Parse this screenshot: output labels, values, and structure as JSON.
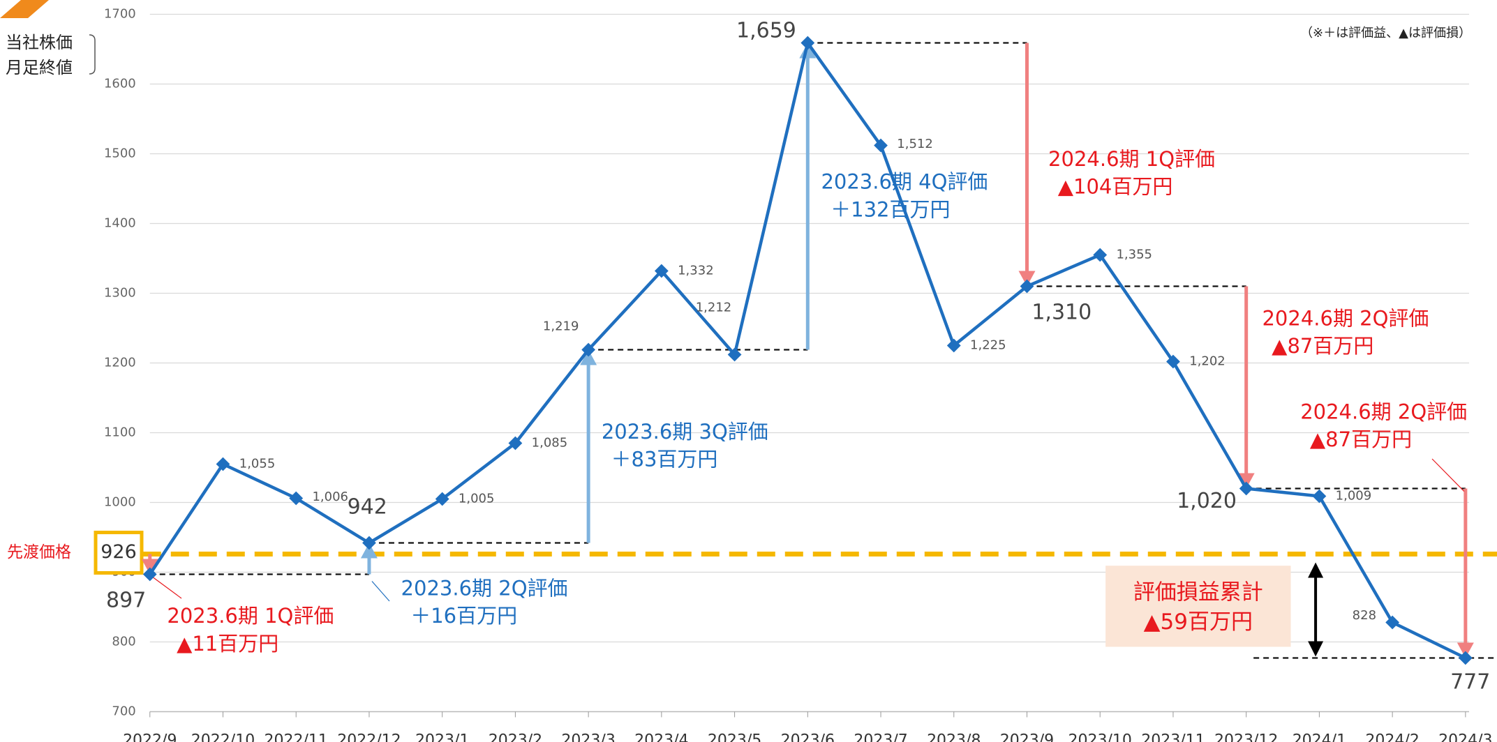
{
  "chart_data": {
    "type": "line",
    "y_axis_label": [
      "当社株価",
      "月足終値"
    ],
    "note": "（※＋は評価益、▲は評価損）",
    "categories": [
      "2022/9",
      "2022/10",
      "2022/11",
      "2022/12",
      "2023/1",
      "2023/2",
      "2023/3",
      "2023/4",
      "2023/5",
      "2023/6",
      "2023/7",
      "2023/8",
      "2023/9",
      "2023/10",
      "2023/11",
      "2023/12",
      "2024/1",
      "2024/2",
      "2024/3"
    ],
    "series": [
      {
        "color": "#1f6fbf",
        "values": [
          897,
          1055,
          1006,
          942,
          1005,
          1085,
          1219,
          1332,
          1212,
          1659,
          1512,
          1225,
          1310,
          1355,
          1202,
          1020,
          1009,
          828,
          777
        ],
        "value_labels": [
          "897",
          "1,055",
          "1,006",
          "942",
          "1,005",
          "1,085",
          "1,219",
          "1,332",
          "1,212",
          "1,659",
          "1,512",
          "1,225",
          "1,310",
          "1,355",
          "1,202",
          "1,020",
          "1,009",
          "828",
          "777"
        ]
      }
    ],
    "ylim": [
      700,
      1700
    ],
    "yticks": [
      700,
      800,
      900,
      1000,
      1100,
      1200,
      1300,
      1400,
      1500,
      1600,
      1700
    ],
    "grid": true,
    "reference_line": {
      "label": "先渡価格",
      "value": 926,
      "color": "#f5b800"
    },
    "annotations": [
      {
        "lines": [
          "2023.6期 1Q評価",
          "▲11百万円"
        ],
        "color": "#e8191e"
      },
      {
        "lines": [
          "2023.6期 2Q評価",
          "＋16百万円"
        ],
        "color": "#1f6fbf"
      },
      {
        "lines": [
          "2023.6期 3Q評価",
          "＋83百万円"
        ],
        "color": "#1f6fbf"
      },
      {
        "lines": [
          "2023.6期 4Q評価",
          "＋132百万円"
        ],
        "color": "#1f6fbf"
      },
      {
        "lines": [
          "2024.6期 1Q評価",
          "▲104百万円"
        ],
        "color": "#e8191e"
      },
      {
        "lines": [
          "2024.6期 2Q評価",
          "▲87百万円"
        ],
        "color": "#e8191e"
      },
      {
        "lines": [
          "2024.6期 2Q評価",
          "▲87百万円"
        ],
        "color": "#e8191e"
      }
    ],
    "summary": {
      "lines": [
        "評価損益累計",
        "▲59百万円"
      ]
    }
  }
}
